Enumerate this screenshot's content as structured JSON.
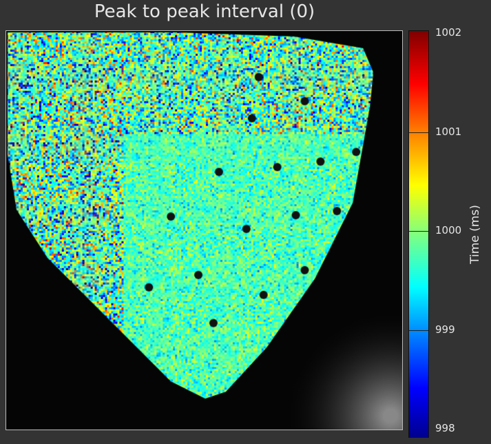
{
  "chart_data": {
    "type": "heatmap",
    "title": "Peak to peak interval (0)",
    "colorbar": {
      "label": "Time (ms)",
      "range": [
        998,
        1002
      ],
      "ticks": [
        "1002",
        "1001",
        "1000",
        "999",
        "998"
      ],
      "colormap": "jet"
    },
    "description_values": {
      "dominant_value_ms": 1000,
      "min_ms": 998,
      "max_ms": 1002
    }
  }
}
